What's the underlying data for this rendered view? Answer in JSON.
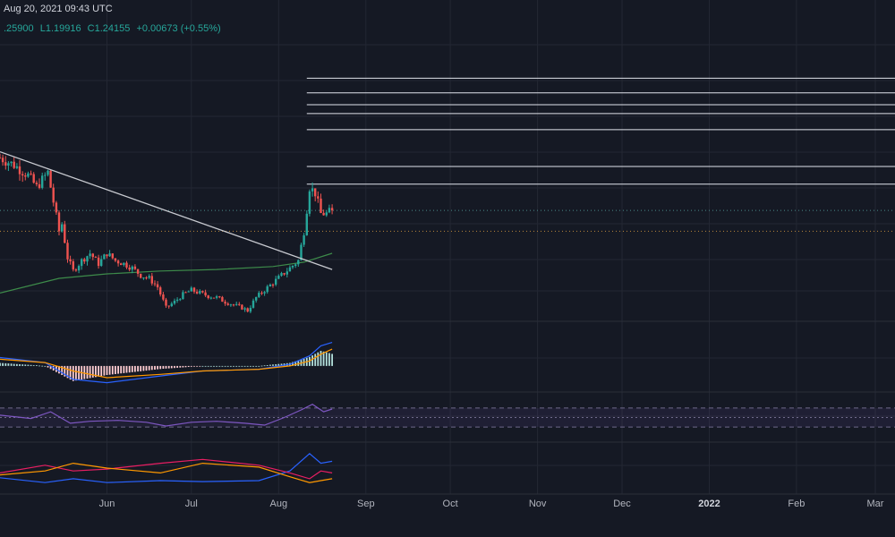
{
  "header": {
    "date_text": "Aug 20, 2021 09:43 UTC",
    "ohlc": {
      "high": ".25900",
      "low": "L1.19916",
      "close": "C1.24155",
      "change": "+0.00673 (+0.55%)"
    }
  },
  "colors": {
    "background": "#151924",
    "grid": "#232733",
    "candle_up": "#26a69a",
    "candle_down": "#ef5350",
    "trendline": "#c8cad0",
    "level_lines": "#e0e3eb",
    "moving_average": "#3d8b4a",
    "macd_line": "#2962ff",
    "signal_line": "#ff9800",
    "rsi": "#7e57c2",
    "dmi_plus": "#2962ff",
    "dmi_minus": "#e91e63",
    "adx": "#ff9800"
  },
  "chart_data": {
    "type": "candlestick",
    "title": "",
    "x_axis": {
      "tick_labels": [
        "Jun",
        "Jul",
        "Aug",
        "Sep",
        "Oct",
        "Nov",
        "Dec",
        "2022",
        "Feb",
        "Mar"
      ],
      "tick_dates": [
        "2021-06-01",
        "2021-07-01",
        "2021-08-01",
        "2021-09-01",
        "2021-10-01",
        "2021-11-01",
        "2021-12-01",
        "2022-01-01",
        "2022-02-01",
        "2022-03-01"
      ],
      "range": [
        "2021-04-24",
        "2022-03-08"
      ]
    },
    "y_range": [
      0.5,
      2.55
    ],
    "current_bar": {
      "date": "2021-08-20",
      "high": 1.259,
      "low": 1.19916,
      "close": 1.24155,
      "change": 0.00673,
      "change_pct": 0.55
    },
    "price_series": {
      "dates": [
        "2021-04-24",
        "2021-04-29",
        "2021-05-04",
        "2021-05-07",
        "2021-05-11",
        "2021-05-13",
        "2021-05-15",
        "2021-05-16",
        "2021-05-18",
        "2021-05-20",
        "2021-05-23",
        "2021-05-26",
        "2021-05-29",
        "2021-06-01",
        "2021-06-04",
        "2021-06-07",
        "2021-06-10",
        "2021-06-13",
        "2021-06-16",
        "2021-06-19",
        "2021-06-22",
        "2021-06-25",
        "2021-06-28",
        "2021-07-01",
        "2021-07-04",
        "2021-07-07",
        "2021-07-10",
        "2021-07-13",
        "2021-07-16",
        "2021-07-19",
        "2021-07-21",
        "2021-07-24",
        "2021-07-27",
        "2021-07-30",
        "2021-08-02",
        "2021-08-05",
        "2021-08-08",
        "2021-08-10",
        "2021-08-12",
        "2021-08-14",
        "2021-08-16",
        "2021-08-18",
        "2021-08-20"
      ],
      "close": [
        1.6,
        1.55,
        1.48,
        1.4,
        1.5,
        1.3,
        1.1,
        1.15,
        0.92,
        0.83,
        0.9,
        0.95,
        0.88,
        0.95,
        0.9,
        0.88,
        0.85,
        0.8,
        0.78,
        0.72,
        0.58,
        0.62,
        0.67,
        0.7,
        0.68,
        0.66,
        0.65,
        0.62,
        0.6,
        0.58,
        0.56,
        0.65,
        0.7,
        0.75,
        0.8,
        0.85,
        0.9,
        1.1,
        1.4,
        1.36,
        1.22,
        1.22,
        1.24155
      ]
    },
    "trendline": {
      "start": [
        "2021-04-24",
        1.64
      ],
      "end": [
        "2021-08-20",
        0.84
      ]
    },
    "moving_average": {
      "dates": [
        "2021-04-24",
        "2021-05-15",
        "2021-06-01",
        "2021-06-20",
        "2021-07-10",
        "2021-07-30",
        "2021-08-10",
        "2021-08-20"
      ],
      "values": [
        0.68,
        0.78,
        0.81,
        0.83,
        0.84,
        0.86,
        0.89,
        0.95
      ]
    },
    "horizontal_levels": {
      "solid": [
        2.14,
        2.04,
        1.96,
        1.9,
        1.79,
        1.54,
        1.42
      ],
      "start_date": "2021-08-11",
      "dotted": [
        1.1,
        1.24155
      ]
    },
    "indicators": {
      "macd": {
        "dates": [
          "2021-04-24",
          "2021-05-10",
          "2021-05-20",
          "2021-06-01",
          "2021-06-20",
          "2021-07-05",
          "2021-07-25",
          "2021-08-05",
          "2021-08-12",
          "2021-08-16",
          "2021-08-20"
        ],
        "macd": [
          0.05,
          0.02,
          -0.08,
          -0.1,
          -0.06,
          -0.03,
          -0.02,
          0.01,
          0.06,
          0.12,
          0.14
        ],
        "signal": [
          0.04,
          0.02,
          -0.03,
          -0.07,
          -0.05,
          -0.03,
          -0.02,
          0.0,
          0.03,
          0.07,
          0.1
        ],
        "range": [
          -0.15,
          0.25
        ]
      },
      "rsi": {
        "dates": [
          "2021-04-24",
          "2021-05-05",
          "2021-05-12",
          "2021-05-19",
          "2021-05-26",
          "2021-06-05",
          "2021-06-15",
          "2021-06-22",
          "2021-07-01",
          "2021-07-10",
          "2021-07-20",
          "2021-07-27",
          "2021-08-03",
          "2021-08-09",
          "2021-08-13",
          "2021-08-17",
          "2021-08-20"
        ],
        "values": [
          55,
          48,
          62,
          38,
          42,
          44,
          40,
          32,
          40,
          42,
          38,
          34,
          50,
          66,
          78,
          62,
          68
        ],
        "levels": [
          70,
          50,
          30
        ],
        "range": [
          0,
          100
        ]
      },
      "dmi": {
        "dates": [
          "2021-04-24",
          "2021-05-10",
          "2021-05-20",
          "2021-06-01",
          "2021-06-20",
          "2021-07-05",
          "2021-07-25",
          "2021-08-05",
          "2021-08-12",
          "2021-08-16",
          "2021-08-20"
        ],
        "plus_di": [
          15,
          10,
          14,
          10,
          12,
          11,
          12,
          22,
          40,
          30,
          32
        ],
        "minus_di": [
          20,
          28,
          22,
          24,
          30,
          34,
          28,
          20,
          14,
          22,
          20
        ],
        "adx": [
          18,
          22,
          30,
          25,
          20,
          30,
          26,
          16,
          10,
          12,
          14
        ],
        "range": [
          0,
          50
        ]
      }
    }
  }
}
